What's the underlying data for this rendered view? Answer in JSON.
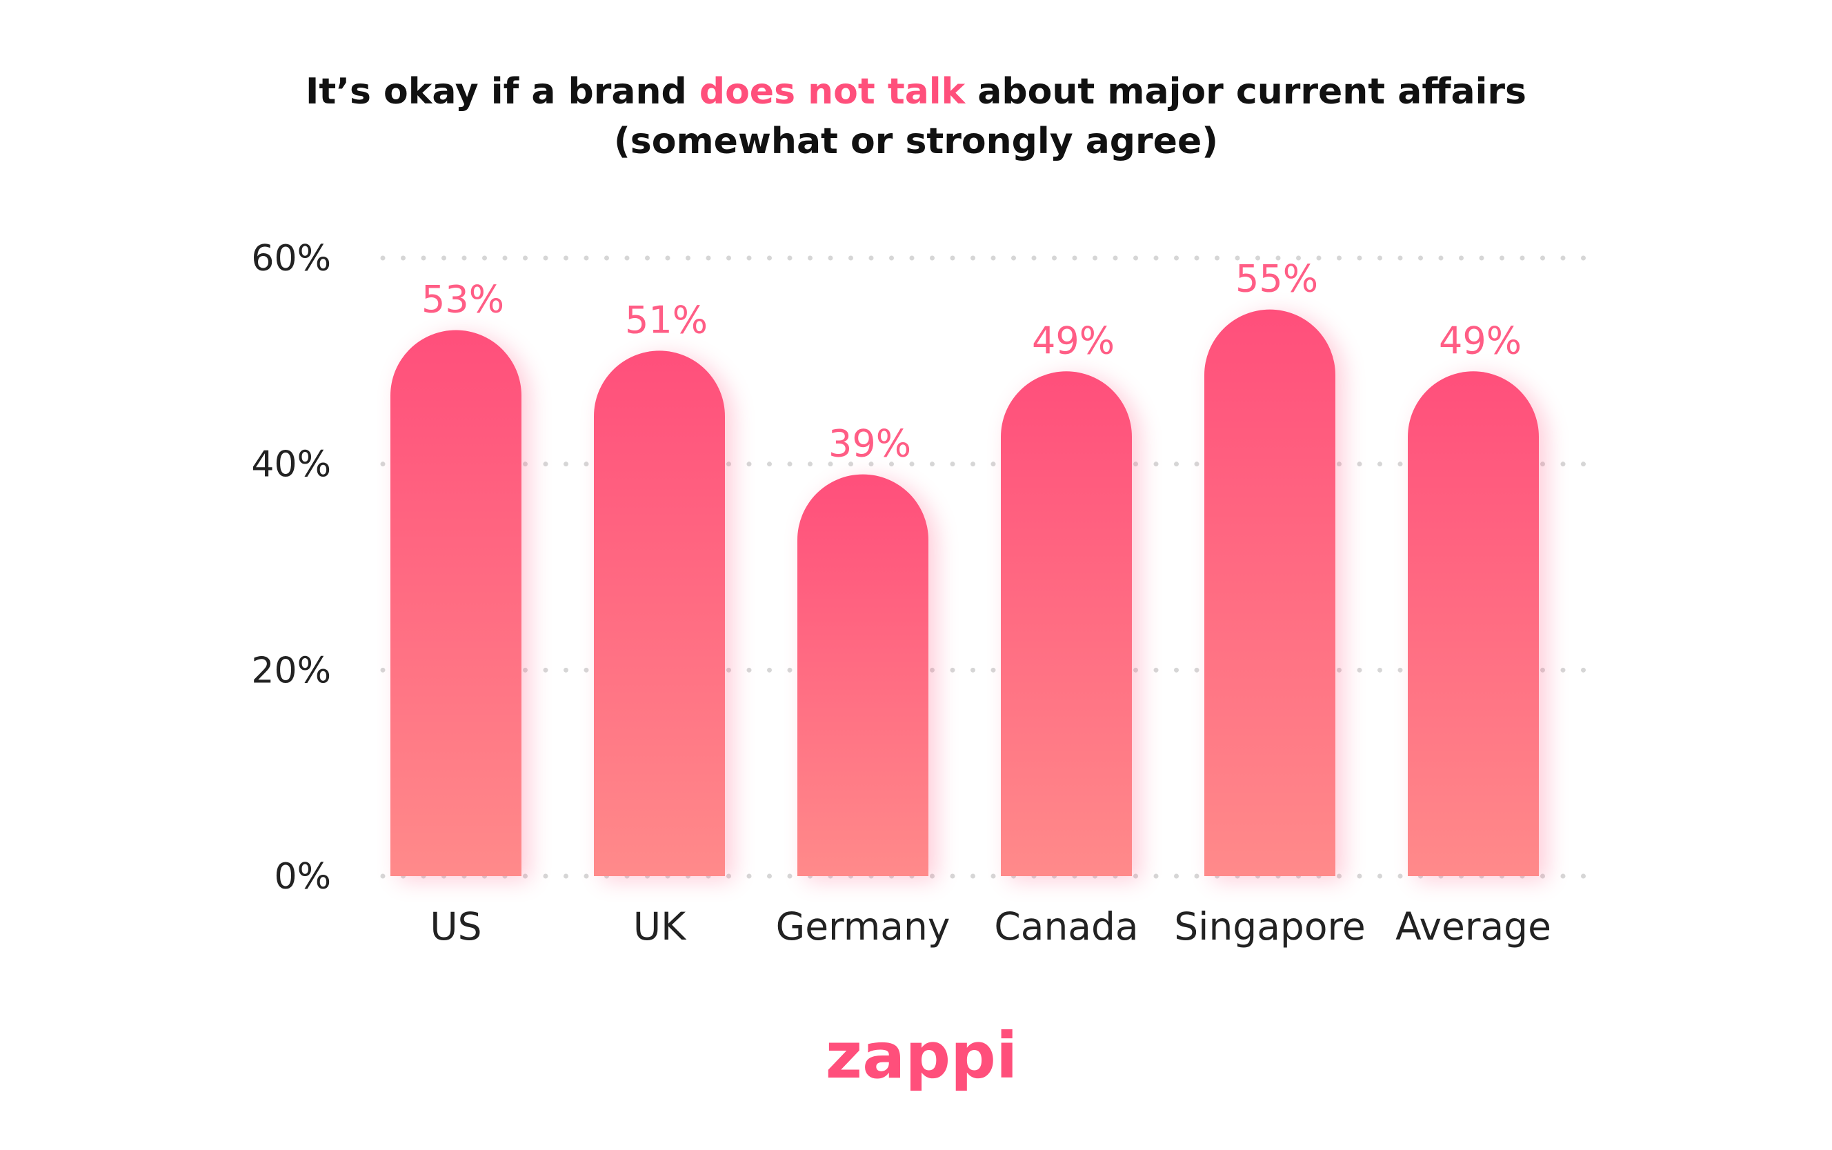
{
  "chart_data": {
    "type": "bar",
    "title_parts": {
      "before": "It’s okay if a brand ",
      "highlight": "does not talk",
      "after": " about major current affairs"
    },
    "subtitle": "(somewhat or strongly agree)",
    "categories": [
      "US",
      "UK",
      "Germany",
      "Canada",
      "Singapore",
      "Average"
    ],
    "values": [
      53,
      51,
      39,
      49,
      55,
      49
    ],
    "data_labels": [
      "53%",
      "51%",
      "39%",
      "49%",
      "55%",
      "49%"
    ],
    "y_ticks": [
      {
        "value": 0,
        "label": "0%"
      },
      {
        "value": 20,
        "label": "20%"
      },
      {
        "value": 40,
        "label": "40%"
      },
      {
        "value": 60,
        "label": "60%"
      }
    ],
    "ylim": [
      0,
      60
    ],
    "grid": "dotted horizontal",
    "xlabel": "",
    "ylabel": ""
  },
  "logo": {
    "text": "zappi"
  },
  "colors": {
    "accent": "#ff4f7b",
    "bar_top": "#ff4f7b",
    "bar_bottom": "#ff8a8a",
    "data_label": "#ff5d85",
    "grid_dot": "#d6d6d6",
    "text": "#111111"
  }
}
